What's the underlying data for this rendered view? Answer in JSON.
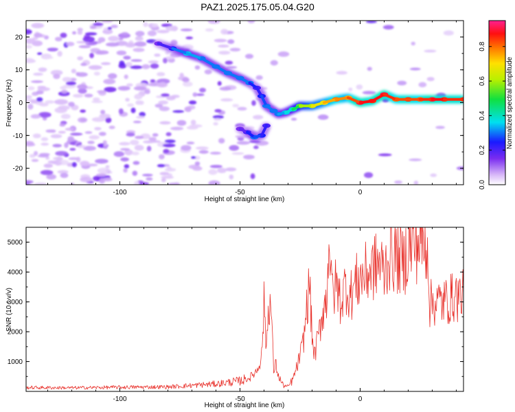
{
  "title": "PAZ1.2025.175.05.04.G20",
  "colors": {
    "snr_line": "#e8302a",
    "axis": "#000000"
  },
  "chart_data": [
    {
      "type": "heatmap",
      "xlabel": "Height of straight line (km)",
      "ylabel": "Frequency (Hz)",
      "xlim": [
        -139,
        43
      ],
      "ylim": [
        -25,
        25
      ],
      "xticks": [
        -100,
        -50,
        0
      ],
      "yticks": [
        -20,
        -10,
        0,
        10,
        20
      ],
      "colorbar": {
        "label": "Normalized spectral amplitude",
        "range": [
          0,
          0.95
        ],
        "ticks": [
          0.0,
          0.2,
          0.4,
          0.6,
          0.8
        ],
        "colormap": "rainbow (white-purple-blue-cyan-green-yellow-orange-red-pink)"
      },
      "ridge": {
        "x": [
          -84,
          -78,
          -72,
          -66,
          -60,
          -55,
          -50,
          -46,
          -43,
          -41,
          -39,
          -36,
          -34,
          -31,
          -28,
          -25,
          -20,
          -15,
          -10,
          -5,
          0,
          5,
          10,
          15,
          20,
          25,
          30,
          35,
          43
        ],
        "y": [
          18,
          16.5,
          15,
          13.5,
          11,
          9,
          7.5,
          6,
          4.5,
          2,
          -1,
          -2.5,
          -3.5,
          -3,
          -2,
          -1,
          -1,
          0,
          1,
          1.5,
          0,
          0.5,
          2.5,
          1,
          1,
          1,
          1,
          1,
          1
        ],
        "amplitude": [
          0.15,
          0.25,
          0.35,
          0.3,
          0.3,
          0.3,
          0.3,
          0.3,
          0.2,
          0.25,
          0.3,
          0.3,
          0.3,
          0.35,
          0.4,
          0.55,
          0.65,
          0.7,
          0.8,
          0.75,
          0.9,
          0.85,
          0.9,
          0.8,
          0.85,
          0.8,
          0.9,
          0.85,
          0.85
        ]
      },
      "secondary_branch": {
        "x": [
          -50,
          -47,
          -44,
          -41,
          -39
        ],
        "y": [
          -8,
          -9,
          -10.5,
          -10,
          -7
        ],
        "amplitude": [
          0.15,
          0.2,
          0.3,
          0.25,
          0.2
        ]
      }
    },
    {
      "type": "line",
      "xlabel": "Height of straight line (km)",
      "ylabel": "SNR (10 * v/v)",
      "xlim": [
        -139,
        43
      ],
      "ylim": [
        0,
        5500
      ],
      "xticks": [
        -100,
        -50,
        0
      ],
      "yticks": [
        1000,
        2000,
        3000,
        4000,
        5000
      ],
      "series": [
        {
          "x": [
            -139,
            -120,
            -100,
            -80,
            -70,
            -60,
            -55,
            -50,
            -46,
            -43,
            -41,
            -40,
            -39,
            -38,
            -37,
            -36,
            -35,
            -34,
            -32,
            -30,
            -28,
            -26,
            -24,
            -23,
            -22,
            -21,
            -20,
            -19,
            -18,
            -17,
            -16,
            -15,
            -14,
            -13,
            -12,
            -11,
            -10,
            -8,
            -6,
            -4,
            -2,
            0,
            2,
            5,
            8,
            10,
            12,
            15,
            18,
            20,
            22,
            25,
            27,
            28,
            29,
            30,
            35,
            40,
            43
          ],
          "y": [
            130,
            120,
            140,
            150,
            200,
            250,
            300,
            350,
            450,
            700,
            1200,
            2900,
            1500,
            3100,
            2700,
            700,
            900,
            500,
            200,
            150,
            400,
            900,
            1500,
            2100,
            3000,
            3600,
            1800,
            1200,
            1600,
            2000,
            2500,
            2900,
            3000,
            5400,
            3500,
            3300,
            3600,
            3000,
            3600,
            3200,
            3600,
            3800,
            3900,
            4100,
            4300,
            4000,
            4600,
            4500,
            4300,
            4800,
            4900,
            5000,
            4800,
            5100,
            2900,
            3000,
            3000,
            3200,
            3200
          ]
        }
      ]
    }
  ]
}
